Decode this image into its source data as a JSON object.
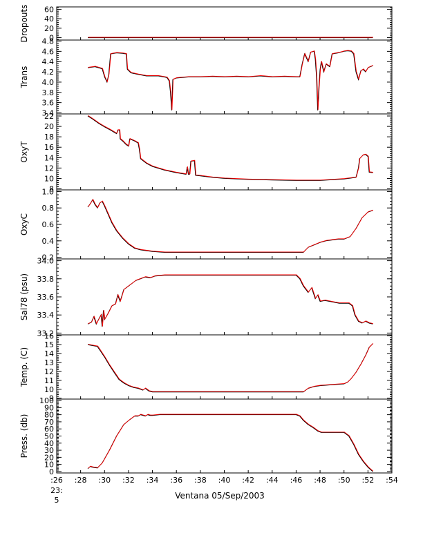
{
  "figure": {
    "xlabel": "Ventana 05/Sep/2003",
    "x_ticks": [
      ":26",
      ":28",
      ":30",
      ":32",
      ":34",
      ":36",
      ":38",
      ":40",
      ":42",
      ":44",
      ":46",
      ":48",
      ":50",
      ":52",
      ":54"
    ],
    "x_start_label_lines": [
      "23:",
      "5"
    ],
    "colors": {
      "series_dark": "#000000",
      "series_red": "#ff0000",
      "axes": "#000000"
    }
  },
  "chart_data": [
    {
      "type": "line",
      "ylabel": "Dropouts",
      "ylim": [
        -5,
        65
      ],
      "yticks": [
        0,
        20,
        40,
        60
      ],
      "ytick_labels": [
        "0",
        "20",
        "40",
        "60"
      ],
      "xlim": [
        26,
        54
      ],
      "x_unit": "minutes past 23:00",
      "series": [
        {
          "x": [
            28.6,
            52.4
          ],
          "y": [
            0,
            0
          ]
        }
      ]
    },
    {
      "type": "line",
      "ylabel": "Trans",
      "ylim": [
        3.38,
        4.82
      ],
      "yticks": [
        3.4,
        3.6,
        3.8,
        4.0,
        4.2,
        4.4,
        4.6,
        4.8
      ],
      "ytick_labels": [
        "3.4",
        "3.6",
        "3.8",
        "4.0",
        "4.2",
        "4.4",
        "4.6",
        "4.8"
      ],
      "xlim": [
        26,
        54
      ],
      "series": [
        {
          "x": [
            28.6,
            29.2,
            29.8,
            30.0,
            30.2,
            30.35,
            30.5,
            31.0,
            31.5,
            31.8,
            31.9,
            32.2,
            32.8,
            33.5,
            34.5,
            35.2,
            35.4,
            35.5,
            35.6,
            35.7,
            36.0,
            37.0,
            38.0,
            39.0,
            40.0,
            41.0,
            42.0,
            43.0,
            44.0,
            45.0,
            46.0,
            46.3,
            46.5,
            46.7,
            47.0,
            47.2,
            47.5,
            47.6,
            47.7,
            47.8,
            47.9,
            48.0,
            48.1,
            48.3,
            48.5,
            48.8,
            49.0,
            49.5,
            50.0,
            50.3,
            50.6,
            50.8,
            51.0,
            51.2,
            51.4,
            51.6,
            51.8,
            52.0,
            52.2,
            52.4
          ],
          "y": [
            4.28,
            4.3,
            4.26,
            4.1,
            4.0,
            4.15,
            4.55,
            4.57,
            4.56,
            4.55,
            4.25,
            4.18,
            4.15,
            4.12,
            4.12,
            4.09,
            4.02,
            3.8,
            3.45,
            4.05,
            4.08,
            4.1,
            4.1,
            4.11,
            4.1,
            4.11,
            4.1,
            4.12,
            4.1,
            4.11,
            4.1,
            4.1,
            4.35,
            4.55,
            4.4,
            4.58,
            4.6,
            4.45,
            4.1,
            3.45,
            3.9,
            4.25,
            4.4,
            4.2,
            4.35,
            4.3,
            4.55,
            4.57,
            4.6,
            4.61,
            4.6,
            4.55,
            4.2,
            4.05,
            4.22,
            4.25,
            4.2,
            4.28,
            4.3,
            4.32
          ]
        }
      ]
    },
    {
      "type": "line",
      "ylabel": "OxyT",
      "ylim": [
        7.8,
        22.4
      ],
      "yticks": [
        8,
        10,
        12,
        14,
        16,
        18,
        20,
        22
      ],
      "ytick_labels": [
        "8",
        "10",
        "12",
        "14",
        "16",
        "18",
        "20",
        "22"
      ],
      "xlim": [
        26,
        54
      ],
      "series": [
        {
          "x": [
            28.6,
            29.0,
            29.5,
            30.0,
            30.5,
            31.0,
            31.1,
            31.25,
            31.3,
            31.5,
            31.8,
            32.0,
            32.1,
            32.3,
            32.5,
            32.8,
            32.9,
            33.0,
            33.5,
            34.0,
            35.0,
            36.0,
            36.8,
            36.9,
            37.0,
            37.1,
            37.2,
            37.5,
            37.6,
            38.0,
            39.0,
            40.0,
            42.0,
            44.0,
            46.0,
            48.0,
            50.0,
            51.0,
            51.2,
            51.3,
            51.6,
            51.8,
            52.0,
            52.1,
            52.4
          ],
          "y": [
            22.0,
            21.4,
            20.6,
            19.9,
            19.3,
            18.6,
            19.3,
            19.3,
            17.6,
            17.2,
            16.5,
            16.2,
            17.6,
            17.4,
            17.2,
            16.8,
            15.6,
            13.8,
            12.9,
            12.3,
            11.6,
            11.1,
            10.8,
            12.2,
            10.8,
            10.8,
            13.3,
            13.4,
            10.6,
            10.5,
            10.2,
            10.0,
            9.8,
            9.7,
            9.6,
            9.6,
            9.9,
            10.2,
            12.0,
            13.8,
            14.5,
            14.6,
            14.2,
            11.2,
            11.1
          ]
        }
      ]
    },
    {
      "type": "line",
      "ylabel": "OxyC",
      "ylim": [
        0.18,
        1.02
      ],
      "yticks": [
        0.2,
        0.4,
        0.6,
        0.8,
        1.0
      ],
      "ytick_labels": [
        "0.2",
        "0.4",
        "0.6",
        "0.8",
        "1.0"
      ],
      "xlim": [
        26,
        54
      ],
      "series": [
        {
          "x": [
            28.6,
            28.8,
            29.0,
            29.2,
            29.4,
            29.6,
            29.8,
            30.0,
            30.3,
            30.6,
            31.0,
            31.5,
            32.0,
            32.5,
            33.0,
            33.5,
            34.0,
            35.0,
            36.0,
            38.0,
            40.0,
            42.0,
            44.0,
            46.0,
            46.6,
            47.0,
            47.5,
            48.0,
            48.5,
            49.0,
            49.5,
            50.0,
            50.5,
            51.0,
            51.5,
            52.0,
            52.4
          ],
          "y": [
            0.81,
            0.85,
            0.9,
            0.84,
            0.8,
            0.86,
            0.88,
            0.82,
            0.72,
            0.62,
            0.52,
            0.43,
            0.36,
            0.31,
            0.29,
            0.28,
            0.27,
            0.26,
            0.26,
            0.26,
            0.26,
            0.26,
            0.26,
            0.26,
            0.26,
            0.32,
            0.35,
            0.38,
            0.4,
            0.41,
            0.42,
            0.42,
            0.45,
            0.55,
            0.68,
            0.75,
            0.77
          ]
        }
      ]
    },
    {
      "type": "line",
      "ylabel": "Sal78 (psu)",
      "ylim": [
        33.18,
        34.02
      ],
      "yticks": [
        33.2,
        33.4,
        33.6,
        33.8,
        34.0
      ],
      "ytick_labels": [
        "33.2",
        "33.4",
        "33.6",
        "33.8",
        "34.0"
      ],
      "xlim": [
        26,
        54
      ],
      "series": [
        {
          "x": [
            28.6,
            28.9,
            29.1,
            29.3,
            29.5,
            29.7,
            29.8,
            29.9,
            30.0,
            30.3,
            30.6,
            30.9,
            31.1,
            31.3,
            31.6,
            32.0,
            32.3,
            32.6,
            33.0,
            33.4,
            33.8,
            34.2,
            35.0,
            36.0,
            38.0,
            40.0,
            42.0,
            44.0,
            46.0,
            46.3,
            46.6,
            47.0,
            47.3,
            47.6,
            47.8,
            48.0,
            48.4,
            48.8,
            49.2,
            49.6,
            50.0,
            50.4,
            50.7,
            50.9,
            51.2,
            51.5,
            51.8,
            52.1,
            52.4
          ],
          "y": [
            33.3,
            33.32,
            33.38,
            33.3,
            33.35,
            33.4,
            33.27,
            33.45,
            33.35,
            33.42,
            33.5,
            33.52,
            33.62,
            33.55,
            33.68,
            33.72,
            33.75,
            33.78,
            33.8,
            33.82,
            33.81,
            33.83,
            33.84,
            33.84,
            33.84,
            33.84,
            33.84,
            33.84,
            33.84,
            33.8,
            33.72,
            33.65,
            33.7,
            33.58,
            33.62,
            33.55,
            33.56,
            33.55,
            33.54,
            33.53,
            33.53,
            33.53,
            33.5,
            33.4,
            33.33,
            33.31,
            33.33,
            33.31,
            33.3
          ]
        }
      ]
    },
    {
      "type": "line",
      "ylabel": "Temp. (C)",
      "ylim": [
        8.9,
        16.1
      ],
      "yticks": [
        9,
        10,
        11,
        12,
        13,
        14,
        15,
        16
      ],
      "ytick_labels": [
        "9",
        "10",
        "11",
        "12",
        "13",
        "14",
        "15",
        "16"
      ],
      "xlim": [
        26,
        54
      ],
      "series": [
        {
          "x": [
            28.6,
            29.0,
            29.4,
            29.7,
            30.0,
            30.4,
            30.8,
            31.2,
            31.6,
            32.0,
            32.4,
            32.8,
            33.2,
            33.4,
            33.7,
            34.0,
            35.0,
            36.0,
            38.0,
            40.0,
            42.0,
            44.0,
            46.0,
            46.6,
            47.0,
            47.5,
            48.0,
            49.0,
            50.0,
            50.3,
            50.6,
            51.0,
            51.4,
            51.8,
            52.1,
            52.4
          ],
          "y": [
            15.0,
            14.9,
            14.8,
            14.2,
            13.6,
            12.7,
            11.9,
            11.1,
            10.7,
            10.4,
            10.2,
            10.1,
            9.9,
            10.1,
            9.8,
            9.7,
            9.7,
            9.7,
            9.7,
            9.7,
            9.7,
            9.7,
            9.7,
            9.7,
            10.1,
            10.3,
            10.4,
            10.5,
            10.6,
            10.8,
            11.2,
            11.9,
            12.8,
            13.8,
            14.7,
            15.1
          ]
        }
      ]
    },
    {
      "type": "line",
      "ylabel": "Press. (db)",
      "ylim": [
        -2,
        102
      ],
      "yticks": [
        0,
        10,
        20,
        30,
        40,
        50,
        60,
        70,
        80,
        90,
        100
      ],
      "ytick_labels": [
        "0",
        "10",
        "20",
        "30",
        "40",
        "50",
        "60",
        "70",
        "80",
        "90",
        "100"
      ],
      "xlim": [
        26,
        54
      ],
      "series": [
        {
          "x": [
            28.6,
            28.8,
            29.0,
            29.4,
            29.8,
            30.4,
            31.0,
            31.6,
            32.1,
            32.5,
            32.8,
            33.0,
            33.2,
            33.4,
            33.6,
            33.8,
            34.0,
            34.6,
            35.0,
            36.0,
            38.0,
            40.0,
            42.0,
            44.0,
            46.0,
            46.3,
            46.6,
            47.0,
            47.4,
            47.8,
            48.1,
            48.5,
            49.0,
            49.5,
            50.0,
            50.4,
            50.8,
            51.2,
            51.6,
            52.0,
            52.2,
            52.4
          ],
          "y": [
            4,
            7,
            6,
            5,
            12,
            30,
            50,
            66,
            73,
            78,
            78,
            80,
            79,
            78,
            80,
            79,
            79,
            80,
            80,
            80,
            80,
            80,
            80,
            80,
            80,
            78,
            72,
            66,
            62,
            57,
            55,
            55,
            55,
            55,
            55,
            50,
            38,
            24,
            14,
            6,
            3,
            0
          ]
        }
      ]
    }
  ]
}
